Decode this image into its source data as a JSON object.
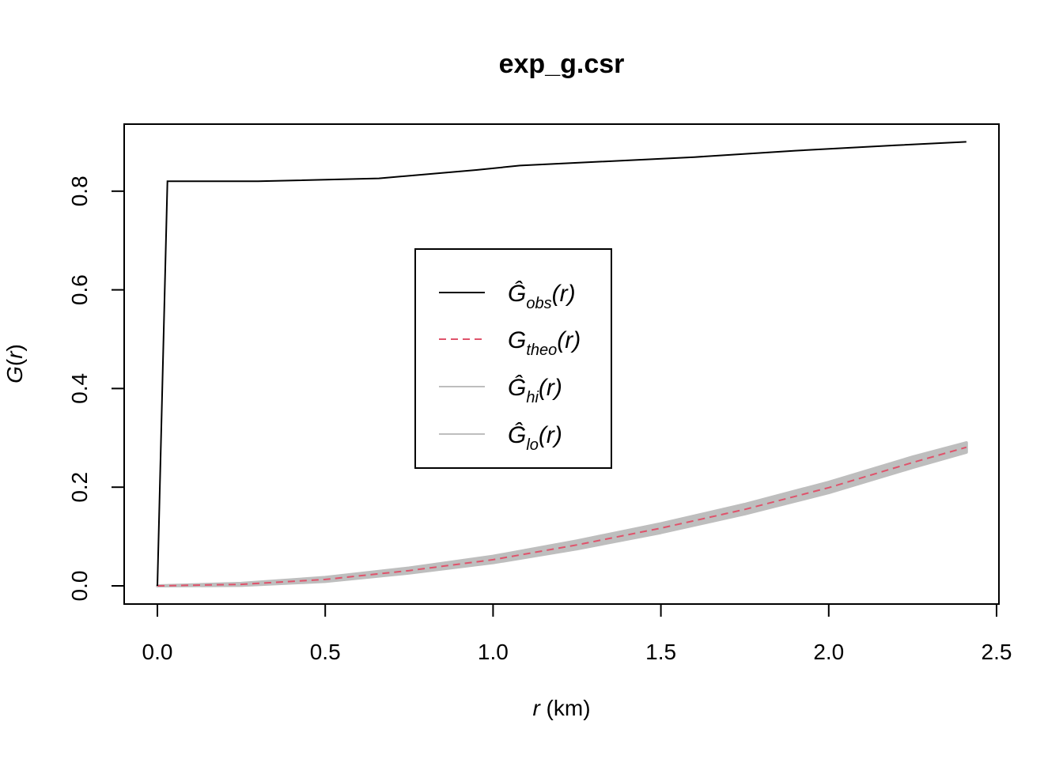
{
  "chart_data": {
    "type": "line",
    "title": "exp_g.csr",
    "xlabel_var": "r",
    "xlabel_unit": " (km)",
    "ylabel_fn": "G",
    "ylabel_var": "r",
    "xlim": [
      0,
      2.5
    ],
    "ylim": [
      0,
      0.9
    ],
    "x_ticks": [
      "0.0",
      "0.5",
      "1.0",
      "1.5",
      "2.0",
      "2.5"
    ],
    "y_ticks": [
      "0.0",
      "0.2",
      "0.4",
      "0.6",
      "0.8"
    ],
    "legend_position": "center",
    "colors": {
      "obs": "#000000",
      "theo": "#DF536B",
      "envelope": "#BEBEBE"
    },
    "series": [
      {
        "name": "obs",
        "legend": {
          "base": "Ĝ",
          "sub": "obs",
          "arg": "(r)"
        },
        "x": [
          0,
          0.03,
          0.3,
          0.66,
          0.95,
          1.08,
          1.6,
          1.9,
          2.2,
          2.41
        ],
        "y": [
          0,
          0.82,
          0.82,
          0.826,
          0.843,
          0.852,
          0.869,
          0.882,
          0.893,
          0.9
        ]
      },
      {
        "name": "theo",
        "legend": {
          "base": "G",
          "sub": "theo",
          "arg": "(r)"
        },
        "x": [
          0,
          0.25,
          0.5,
          0.75,
          1.0,
          1.25,
          1.5,
          1.75,
          2.0,
          2.25,
          2.41
        ],
        "y": [
          0,
          0.003,
          0.013,
          0.031,
          0.053,
          0.083,
          0.117,
          0.155,
          0.199,
          0.25,
          0.281
        ]
      },
      {
        "name": "hi",
        "legend": {
          "base": "Ĝ",
          "sub": "hi",
          "arg": "(r)"
        },
        "x": [
          0,
          0.25,
          0.5,
          0.75,
          1.0,
          1.25,
          1.5,
          1.75,
          2.0,
          2.25,
          2.41
        ],
        "y": [
          0,
          0.005,
          0.017,
          0.036,
          0.06,
          0.091,
          0.126,
          0.165,
          0.21,
          0.261,
          0.29
        ]
      },
      {
        "name": "lo",
        "legend": {
          "base": "Ĝ",
          "sub": "lo",
          "arg": "(r)"
        },
        "x": [
          0,
          0.25,
          0.5,
          0.75,
          1.0,
          1.25,
          1.5,
          1.75,
          2.0,
          2.25,
          2.41
        ],
        "y": [
          0,
          0.001,
          0.009,
          0.026,
          0.047,
          0.075,
          0.108,
          0.146,
          0.189,
          0.24,
          0.271
        ]
      }
    ]
  }
}
